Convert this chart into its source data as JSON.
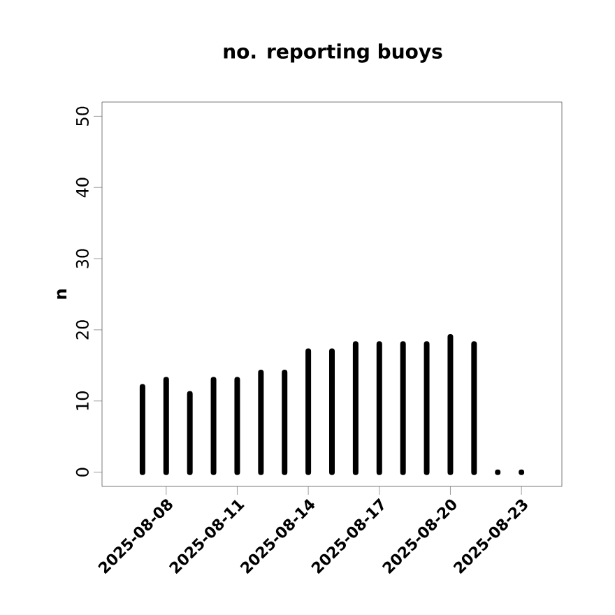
{
  "chart_data": {
    "type": "bar",
    "title": "no. reporting buoys",
    "ylabel": "n",
    "color": "#000000",
    "x": [
      "2025-08-07",
      "2025-08-08",
      "2025-08-09",
      "2025-08-10",
      "2025-08-11",
      "2025-08-12",
      "2025-08-13",
      "2025-08-14",
      "2025-08-15",
      "2025-08-16",
      "2025-08-17",
      "2025-08-18",
      "2025-08-19",
      "2025-08-20",
      "2025-08-21",
      "2025-08-22",
      "2025-08-23"
    ],
    "values": [
      12,
      13,
      11,
      13,
      13,
      14,
      14,
      17,
      17,
      18,
      18,
      18,
      18,
      19,
      18,
      0,
      0
    ],
    "xlim": [
      "2025-08-05T07:00",
      "2025-08-24T17:00"
    ],
    "xticks": [
      "2025-08-08",
      "2025-08-11",
      "2025-08-14",
      "2025-08-17",
      "2025-08-20",
      "2025-08-23"
    ],
    "ylim": [
      -2,
      52
    ],
    "yticks": [
      0,
      10,
      20,
      30,
      40,
      50
    ]
  }
}
